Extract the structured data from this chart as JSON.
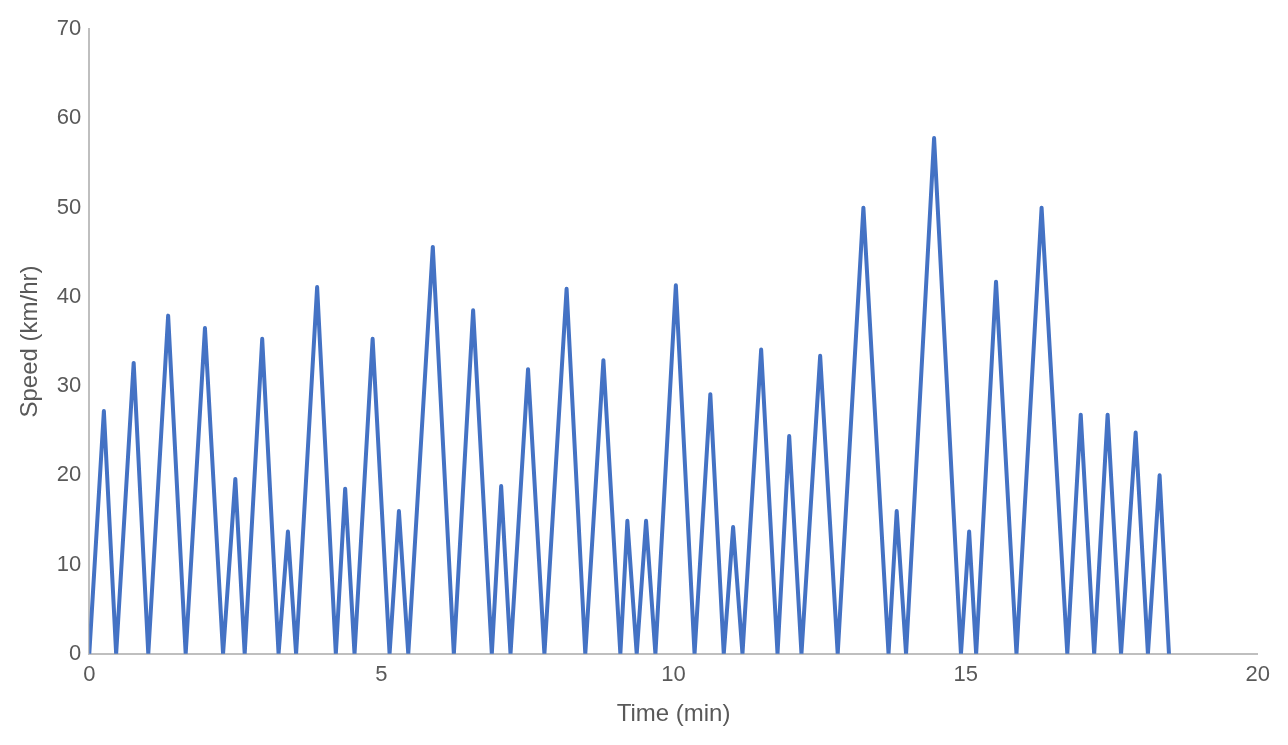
{
  "chart_data": {
    "type": "line",
    "xlabel": "Time (min)",
    "ylabel": "Speed (km/hr)",
    "x": [
      0,
      0.25,
      0.46,
      0.76,
      1.01,
      1.35,
      1.65,
      1.98,
      2.29,
      2.5,
      2.66,
      2.96,
      3.24,
      3.4,
      3.54,
      3.9,
      4.22,
      4.38,
      4.54,
      4.85,
      5.14,
      5.3,
      5.46,
      5.88,
      6.24,
      6.57,
      6.89,
      7.05,
      7.21,
      7.51,
      7.79,
      8.17,
      8.49,
      8.8,
      9.09,
      9.21,
      9.37,
      9.53,
      9.69,
      10.04,
      10.36,
      10.63,
      10.86,
      11.02,
      11.18,
      11.5,
      11.78,
      11.98,
      12.19,
      12.51,
      12.81,
      13.25,
      13.68,
      13.82,
      13.98,
      14.46,
      14.92,
      15.06,
      15.18,
      15.52,
      15.87,
      16.3,
      16.74,
      16.97,
      17.2,
      17.43,
      17.66,
      17.91,
      18.12,
      18.32,
      18.48
    ],
    "series": [
      {
        "color": "#4472c4",
        "values": [
          0,
          27.2,
          0,
          32.6,
          0,
          37.9,
          0,
          36.5,
          0,
          19.6,
          0,
          35.3,
          0,
          13.7,
          0,
          41.1,
          0,
          18.5,
          0,
          35.3,
          0,
          16,
          0,
          45.6,
          0,
          38.5,
          0,
          18.8,
          0,
          31.9,
          0,
          40.9,
          0,
          32.9,
          0,
          14.9,
          0,
          14.9,
          0,
          41.3,
          0,
          29.1,
          0,
          14.2,
          0,
          34.1,
          0,
          24.4,
          0,
          33.4,
          0,
          50,
          0,
          16,
          0,
          57.8,
          0,
          13.7,
          0,
          41.7,
          0,
          50,
          0,
          26.8,
          0,
          26.8,
          0,
          24.8,
          0,
          20,
          0
        ]
      }
    ],
    "xlim": [
      0,
      20
    ],
    "xticks": [
      0,
      5,
      10,
      15,
      20
    ],
    "ylim": [
      0,
      70
    ],
    "yticks": [
      0,
      10,
      20,
      30,
      40,
      50,
      60,
      70
    ],
    "grid": false,
    "legend": false,
    "marker": "none",
    "line_style": "solid"
  }
}
